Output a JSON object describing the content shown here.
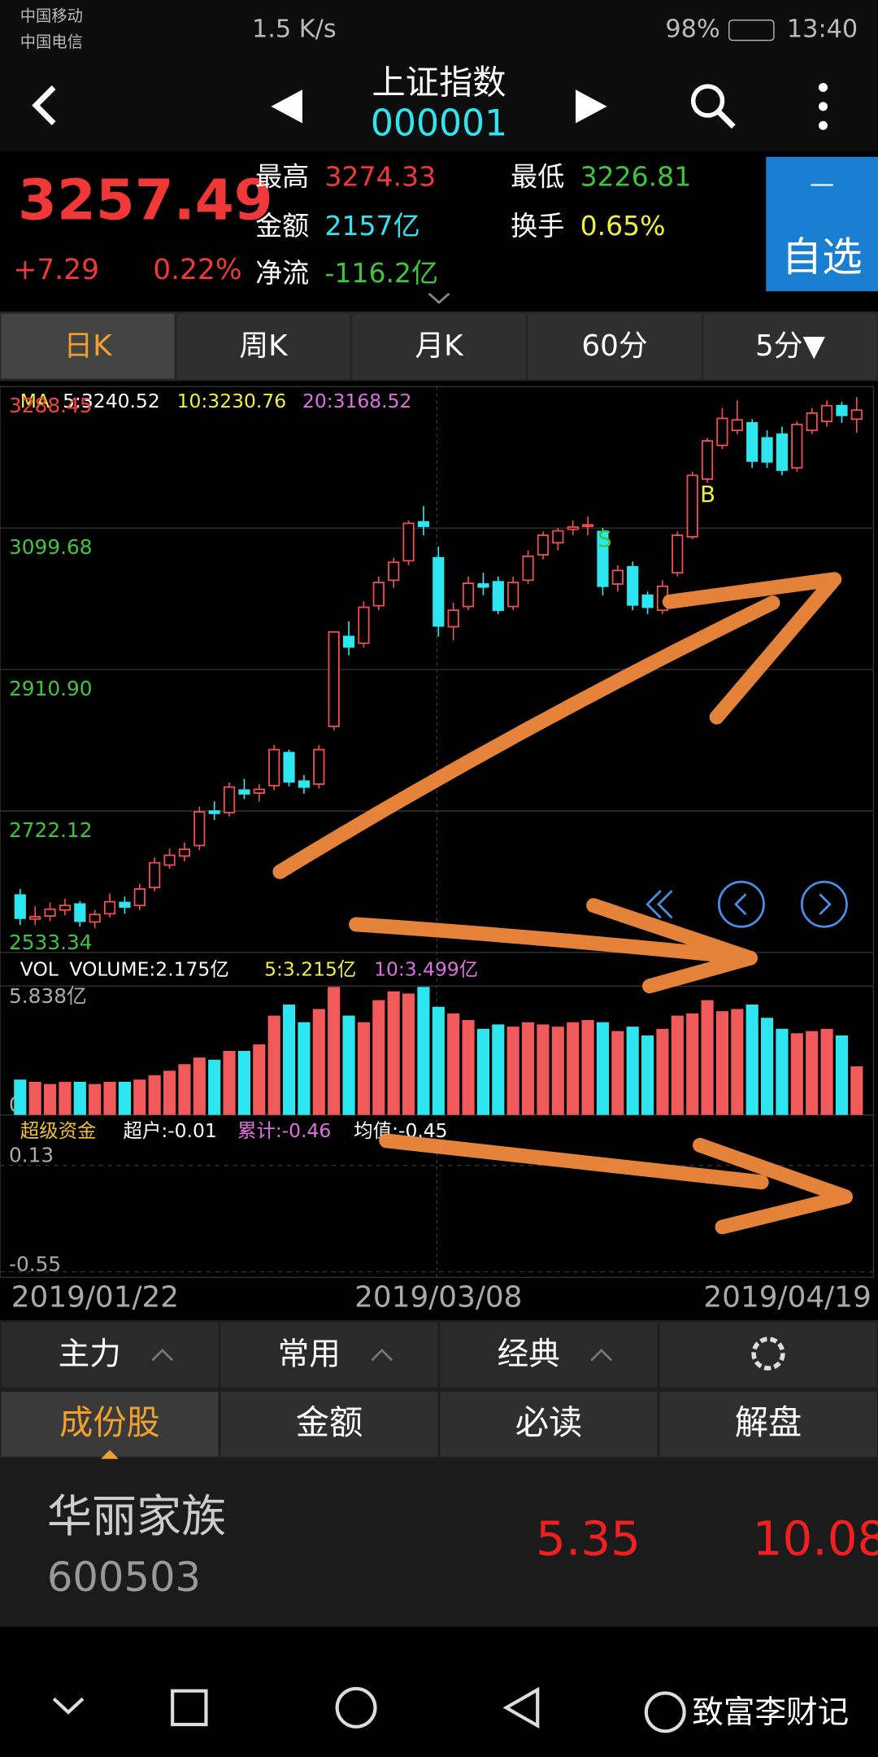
{
  "status_bar": {
    "carrier1": "中国移动",
    "carrier2": "中国电信",
    "speed": "1.5 K/s",
    "battery": "98%",
    "time": "13:40"
  },
  "header": {
    "title": "上证指数",
    "code": "000001"
  },
  "quote": {
    "price": "3257.49",
    "change": "+7.29",
    "change_pct": "0.22%",
    "high_label": "最高",
    "high": "3274.33",
    "amount_label": "金额",
    "amount": "2157亿",
    "low_label": "最低",
    "low": "3226.81",
    "turnover_label": "换手",
    "turnover": "0.65%",
    "netflow_label": "净流",
    "netflow": "-116.2亿",
    "watch_icon": "—",
    "watch": "自选"
  },
  "period_tabs": [
    "日K",
    "周K",
    "月K",
    "60分",
    "5分▼"
  ],
  "chart_data": [
    {
      "type": "candlestick",
      "legend": {
        "name": "MA",
        "ma5": "5:3240.52",
        "ma10": "10:3230.76",
        "ma20": "20:3168.52"
      },
      "annotations": [
        "S",
        "B"
      ],
      "categories": [
        "2019/01/22",
        null,
        null,
        null,
        null,
        null,
        null,
        null,
        null,
        null,
        null,
        null,
        null,
        null,
        null,
        null,
        null,
        null,
        null,
        null,
        null,
        null,
        null,
        null,
        null,
        null,
        null,
        null,
        "2019/03/08",
        null,
        null,
        null,
        null,
        null,
        null,
        null,
        null,
        null,
        null,
        null,
        null,
        null,
        null,
        null,
        null,
        null,
        null,
        null,
        null,
        null,
        null,
        null,
        null,
        null,
        null,
        null,
        "2019/04/19"
      ],
      "open": [
        2610,
        2578,
        2582,
        2590,
        2598,
        2574,
        2585,
        2600,
        2596,
        2620,
        2650,
        2662,
        2676,
        2722,
        2720,
        2750,
        2746,
        2756,
        2800,
        2762,
        2758,
        2835,
        2955,
        2946,
        2996,
        3030,
        3056,
        3108,
        3060,
        2968,
        2995,
        3025,
        3028,
        2995,
        3030,
        3064,
        3080,
        3098,
        3102,
        3095,
        3025,
        3048,
        3010,
        2990,
        3040,
        3088,
        3165,
        3210,
        3230,
        3240,
        3220,
        3225,
        3180,
        3230,
        3242,
        3263,
        3245
      ],
      "close": [
        2579,
        2581,
        2591,
        2596,
        2575,
        2584,
        2601,
        2594,
        2618,
        2653,
        2663,
        2671,
        2721,
        2719,
        2754,
        2745,
        2751,
        2804,
        2761,
        2754,
        2804,
        2961,
        2941,
        2994,
        3027,
        3054,
        3106,
        3102,
        2969,
        2990,
        3026,
        3021,
        2990,
        3027,
        3062,
        3090,
        3096,
        3101,
        3104,
        3022,
        3043,
        2997,
        2994,
        3022,
        3090,
        3170,
        3216,
        3246,
        3244,
        3189,
        3188,
        3177,
        3238,
        3253,
        3263,
        3250,
        3257
      ],
      "high": [
        2618,
        2595,
        2600,
        2605,
        2602,
        2590,
        2612,
        2608,
        2625,
        2660,
        2672,
        2680,
        2728,
        2735,
        2760,
        2765,
        2758,
        2810,
        2804,
        2770,
        2810,
        2961,
        2975,
        3002,
        3035,
        3060,
        3110,
        3129,
        3075,
        3000,
        3035,
        3040,
        3035,
        3035,
        3070,
        3095,
        3100,
        3110,
        3115,
        3100,
        3050,
        3055,
        3015,
        3030,
        3095,
        3175,
        3220,
        3260,
        3270,
        3245,
        3230,
        3235,
        3242,
        3260,
        3270,
        3268,
        3274.33
      ],
      "low": [
        2570,
        2570,
        2575,
        2583,
        2568,
        2566,
        2580,
        2585,
        2590,
        2615,
        2645,
        2655,
        2670,
        2710,
        2715,
        2738,
        2735,
        2750,
        2755,
        2745,
        2752,
        2830,
        2930,
        2940,
        2990,
        3020,
        3050,
        3090,
        2955,
        2950,
        2990,
        3010,
        2985,
        2990,
        3025,
        3058,
        3070,
        3090,
        3090,
        3010,
        3015,
        2990,
        2985,
        2985,
        3035,
        3085,
        3160,
        3205,
        3225,
        3180,
        3180,
        3170,
        3175,
        3225,
        3235,
        3240,
        3226.81
      ],
      "up_color": "#f0504f",
      "down_color": "#2ee6f0",
      "ylim": [
        2533.34,
        3288.45
      ],
      "yticks": [
        3288.45,
        3099.68,
        {
          "value": 2910.9,
          "label": "2910.90"
        },
        2722.12,
        2533.34
      ],
      "grid": true
    },
    {
      "type": "bar",
      "legend": {
        "name": "VOL",
        "volume": "VOLUME:2.175亿",
        "ma5": "5:3.215亿",
        "ma10": "10:3.499亿"
      },
      "values": [
        1.6,
        1.5,
        1.4,
        1.5,
        1.5,
        1.4,
        1.5,
        1.5,
        1.6,
        1.8,
        2.0,
        2.3,
        2.6,
        2.5,
        2.9,
        2.9,
        3.2,
        4.5,
        5.0,
        4.2,
        4.8,
        5.8,
        4.5,
        4.2,
        5.2,
        5.6,
        5.5,
        5.8,
        4.9,
        4.6,
        4.3,
        3.9,
        4.1,
        4.0,
        4.2,
        4.1,
        4.0,
        4.2,
        4.3,
        4.2,
        3.8,
        4.0,
        3.6,
        3.9,
        4.5,
        4.6,
        5.2,
        4.7,
        4.8,
        5.0,
        4.4,
        3.9,
        3.7,
        3.8,
        3.9,
        3.6,
        2.2
      ],
      "ylim": [
        0,
        5.838
      ],
      "yticks": [
        {
          "value": 5.838,
          "label": "5.838亿"
        },
        0
      ]
    },
    {
      "type": "indicator",
      "legend": {
        "name": "超级资金",
        "super": "超户:-0.01",
        "total": "累计:-0.46",
        "mean": "均值:-0.45"
      },
      "ylim": [
        -0.55,
        0.13
      ],
      "yticks": [
        0.13,
        -0.55
      ]
    }
  ],
  "indicator_tabs": [
    "主力",
    "常用",
    "经典"
  ],
  "content_tabs": [
    "成份股",
    "金额",
    "必读",
    "解盘"
  ],
  "stock": {
    "name": "华丽家族",
    "code": "600503",
    "price": "5.35",
    "change_pct": "10.08"
  },
  "watermark": "致富李财记"
}
